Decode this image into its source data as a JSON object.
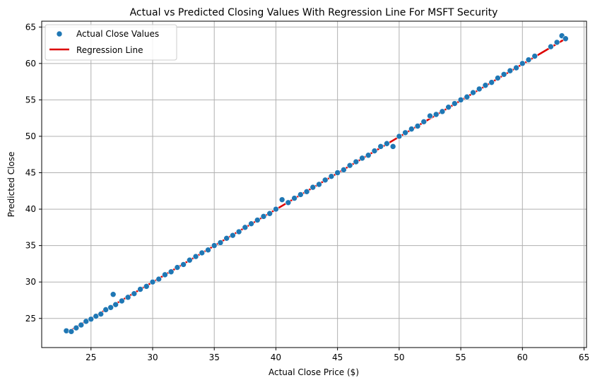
{
  "chart_data": {
    "type": "scatter",
    "title": "Actual vs Predicted Closing Values With Regression Line For MSFT Security",
    "xlabel": "Actual Close Price ($)",
    "ylabel": "Predicted Close",
    "xlim": [
      21.0,
      65.2
    ],
    "ylim": [
      21.0,
      65.8
    ],
    "xticks": [
      25,
      30,
      35,
      40,
      45,
      50,
      55,
      60,
      65
    ],
    "yticks": [
      25,
      30,
      35,
      40,
      45,
      50,
      55,
      60,
      65
    ],
    "grid": true,
    "legend": {
      "position": "top-left"
    },
    "series": [
      {
        "name": "Actual Close Values",
        "kind": "scatter",
        "color": "#1f77b4",
        "points": [
          [
            23.0,
            23.3
          ],
          [
            23.4,
            23.2
          ],
          [
            23.8,
            23.7
          ],
          [
            24.2,
            24.1
          ],
          [
            24.6,
            24.6
          ],
          [
            25.0,
            24.9
          ],
          [
            25.4,
            25.3
          ],
          [
            25.8,
            25.6
          ],
          [
            26.2,
            26.2
          ],
          [
            26.6,
            26.5
          ],
          [
            26.8,
            28.3
          ],
          [
            27.0,
            26.9
          ],
          [
            27.5,
            27.4
          ],
          [
            28.0,
            27.9
          ],
          [
            28.5,
            28.4
          ],
          [
            29.0,
            29.0
          ],
          [
            29.5,
            29.4
          ],
          [
            30.0,
            30.0
          ],
          [
            30.5,
            30.4
          ],
          [
            31.0,
            31.0
          ],
          [
            31.5,
            31.4
          ],
          [
            32.0,
            32.0
          ],
          [
            32.5,
            32.4
          ],
          [
            33.0,
            33.0
          ],
          [
            33.5,
            33.5
          ],
          [
            34.0,
            34.0
          ],
          [
            34.5,
            34.4
          ],
          [
            35.0,
            35.0
          ],
          [
            35.5,
            35.4
          ],
          [
            36.0,
            36.0
          ],
          [
            36.5,
            36.4
          ],
          [
            37.0,
            36.9
          ],
          [
            37.5,
            37.5
          ],
          [
            38.0,
            38.0
          ],
          [
            38.5,
            38.5
          ],
          [
            39.0,
            39.0
          ],
          [
            39.5,
            39.4
          ],
          [
            40.0,
            40.0
          ],
          [
            40.5,
            41.3
          ],
          [
            41.0,
            40.9
          ],
          [
            41.5,
            41.5
          ],
          [
            42.0,
            42.0
          ],
          [
            42.5,
            42.4
          ],
          [
            43.0,
            43.0
          ],
          [
            43.5,
            43.4
          ],
          [
            44.0,
            44.0
          ],
          [
            44.5,
            44.5
          ],
          [
            45.0,
            45.0
          ],
          [
            45.5,
            45.4
          ],
          [
            46.0,
            46.0
          ],
          [
            46.5,
            46.5
          ],
          [
            47.0,
            47.0
          ],
          [
            47.5,
            47.4
          ],
          [
            48.0,
            48.0
          ],
          [
            48.5,
            48.6
          ],
          [
            49.0,
            49.0
          ],
          [
            49.5,
            48.6
          ],
          [
            50.0,
            50.0
          ],
          [
            50.5,
            50.5
          ],
          [
            51.0,
            51.0
          ],
          [
            51.5,
            51.4
          ],
          [
            52.0,
            52.0
          ],
          [
            52.5,
            52.8
          ],
          [
            53.0,
            53.0
          ],
          [
            53.5,
            53.4
          ],
          [
            54.0,
            54.0
          ],
          [
            54.5,
            54.5
          ],
          [
            55.0,
            55.0
          ],
          [
            55.5,
            55.4
          ],
          [
            56.0,
            56.0
          ],
          [
            56.5,
            56.5
          ],
          [
            57.0,
            57.0
          ],
          [
            57.5,
            57.4
          ],
          [
            58.0,
            58.0
          ],
          [
            58.5,
            58.5
          ],
          [
            59.0,
            59.0
          ],
          [
            59.5,
            59.4
          ],
          [
            60.0,
            60.0
          ],
          [
            60.5,
            60.5
          ],
          [
            61.0,
            61.0
          ],
          [
            62.3,
            62.3
          ],
          [
            62.8,
            62.9
          ],
          [
            63.2,
            63.8
          ],
          [
            63.5,
            63.4
          ]
        ]
      },
      {
        "name": "Regression Line",
        "kind": "line",
        "color": "#dd0000",
        "points": [
          [
            23.0,
            23.0
          ],
          [
            63.5,
            63.4
          ]
        ]
      }
    ]
  }
}
